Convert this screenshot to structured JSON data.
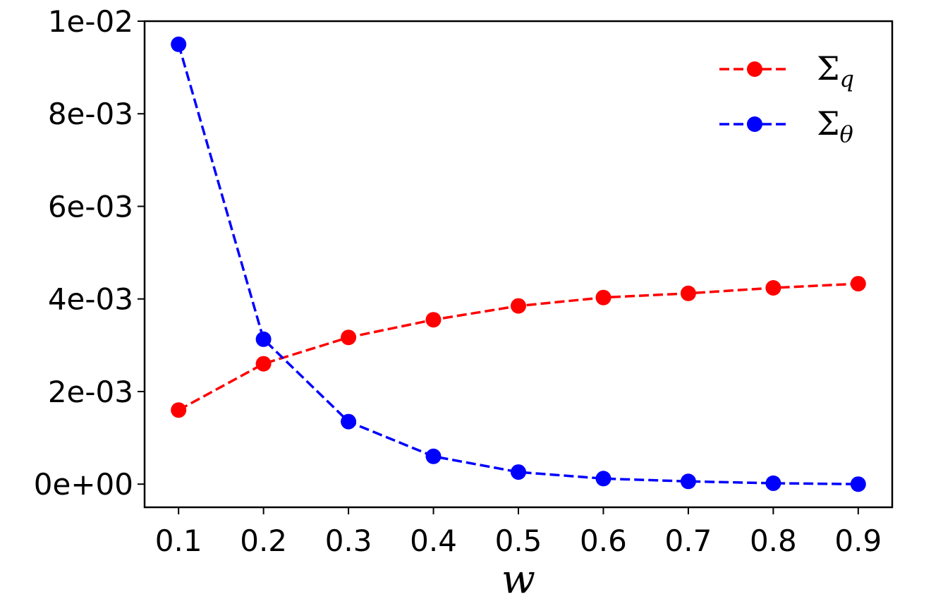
{
  "chart_data": {
    "type": "line",
    "x": [
      0.1,
      0.2,
      0.3,
      0.4,
      0.5,
      0.6,
      0.7,
      0.8,
      0.9
    ],
    "series": [
      {
        "name": "Σ",
        "subscript": "q",
        "color": "#ff0000",
        "values": [
          0.0016,
          0.0026,
          0.00317,
          0.00355,
          0.00385,
          0.00403,
          0.00412,
          0.00424,
          0.00433
        ]
      },
      {
        "name": "Σ",
        "subscript": "θ",
        "color": "#0000ff",
        "values": [
          0.0095,
          0.00313,
          0.00135,
          0.0006,
          0.00026,
          0.00012,
          6e-05,
          2e-05,
          0.0
        ]
      }
    ],
    "xlabel": "w",
    "ylabel": "",
    "xlim": [
      0.06,
      0.94
    ],
    "ylim": [
      -0.0005,
      0.01
    ],
    "xticks": [
      "0.1",
      "0.2",
      "0.3",
      "0.4",
      "0.5",
      "0.6",
      "0.7",
      "0.8",
      "0.9"
    ],
    "xtick_values": [
      0.1,
      0.2,
      0.3,
      0.4,
      0.5,
      0.6,
      0.7,
      0.8,
      0.9
    ],
    "yticks": [
      "0e+00",
      "2e-03",
      "4e-03",
      "6e-03",
      "8e-03",
      "1e-02"
    ],
    "ytick_values": [
      0,
      0.002,
      0.004,
      0.006,
      0.008,
      0.01
    ],
    "line_style": "dashed",
    "marker": "circle",
    "grid": false,
    "legend_position": "top-right"
  }
}
